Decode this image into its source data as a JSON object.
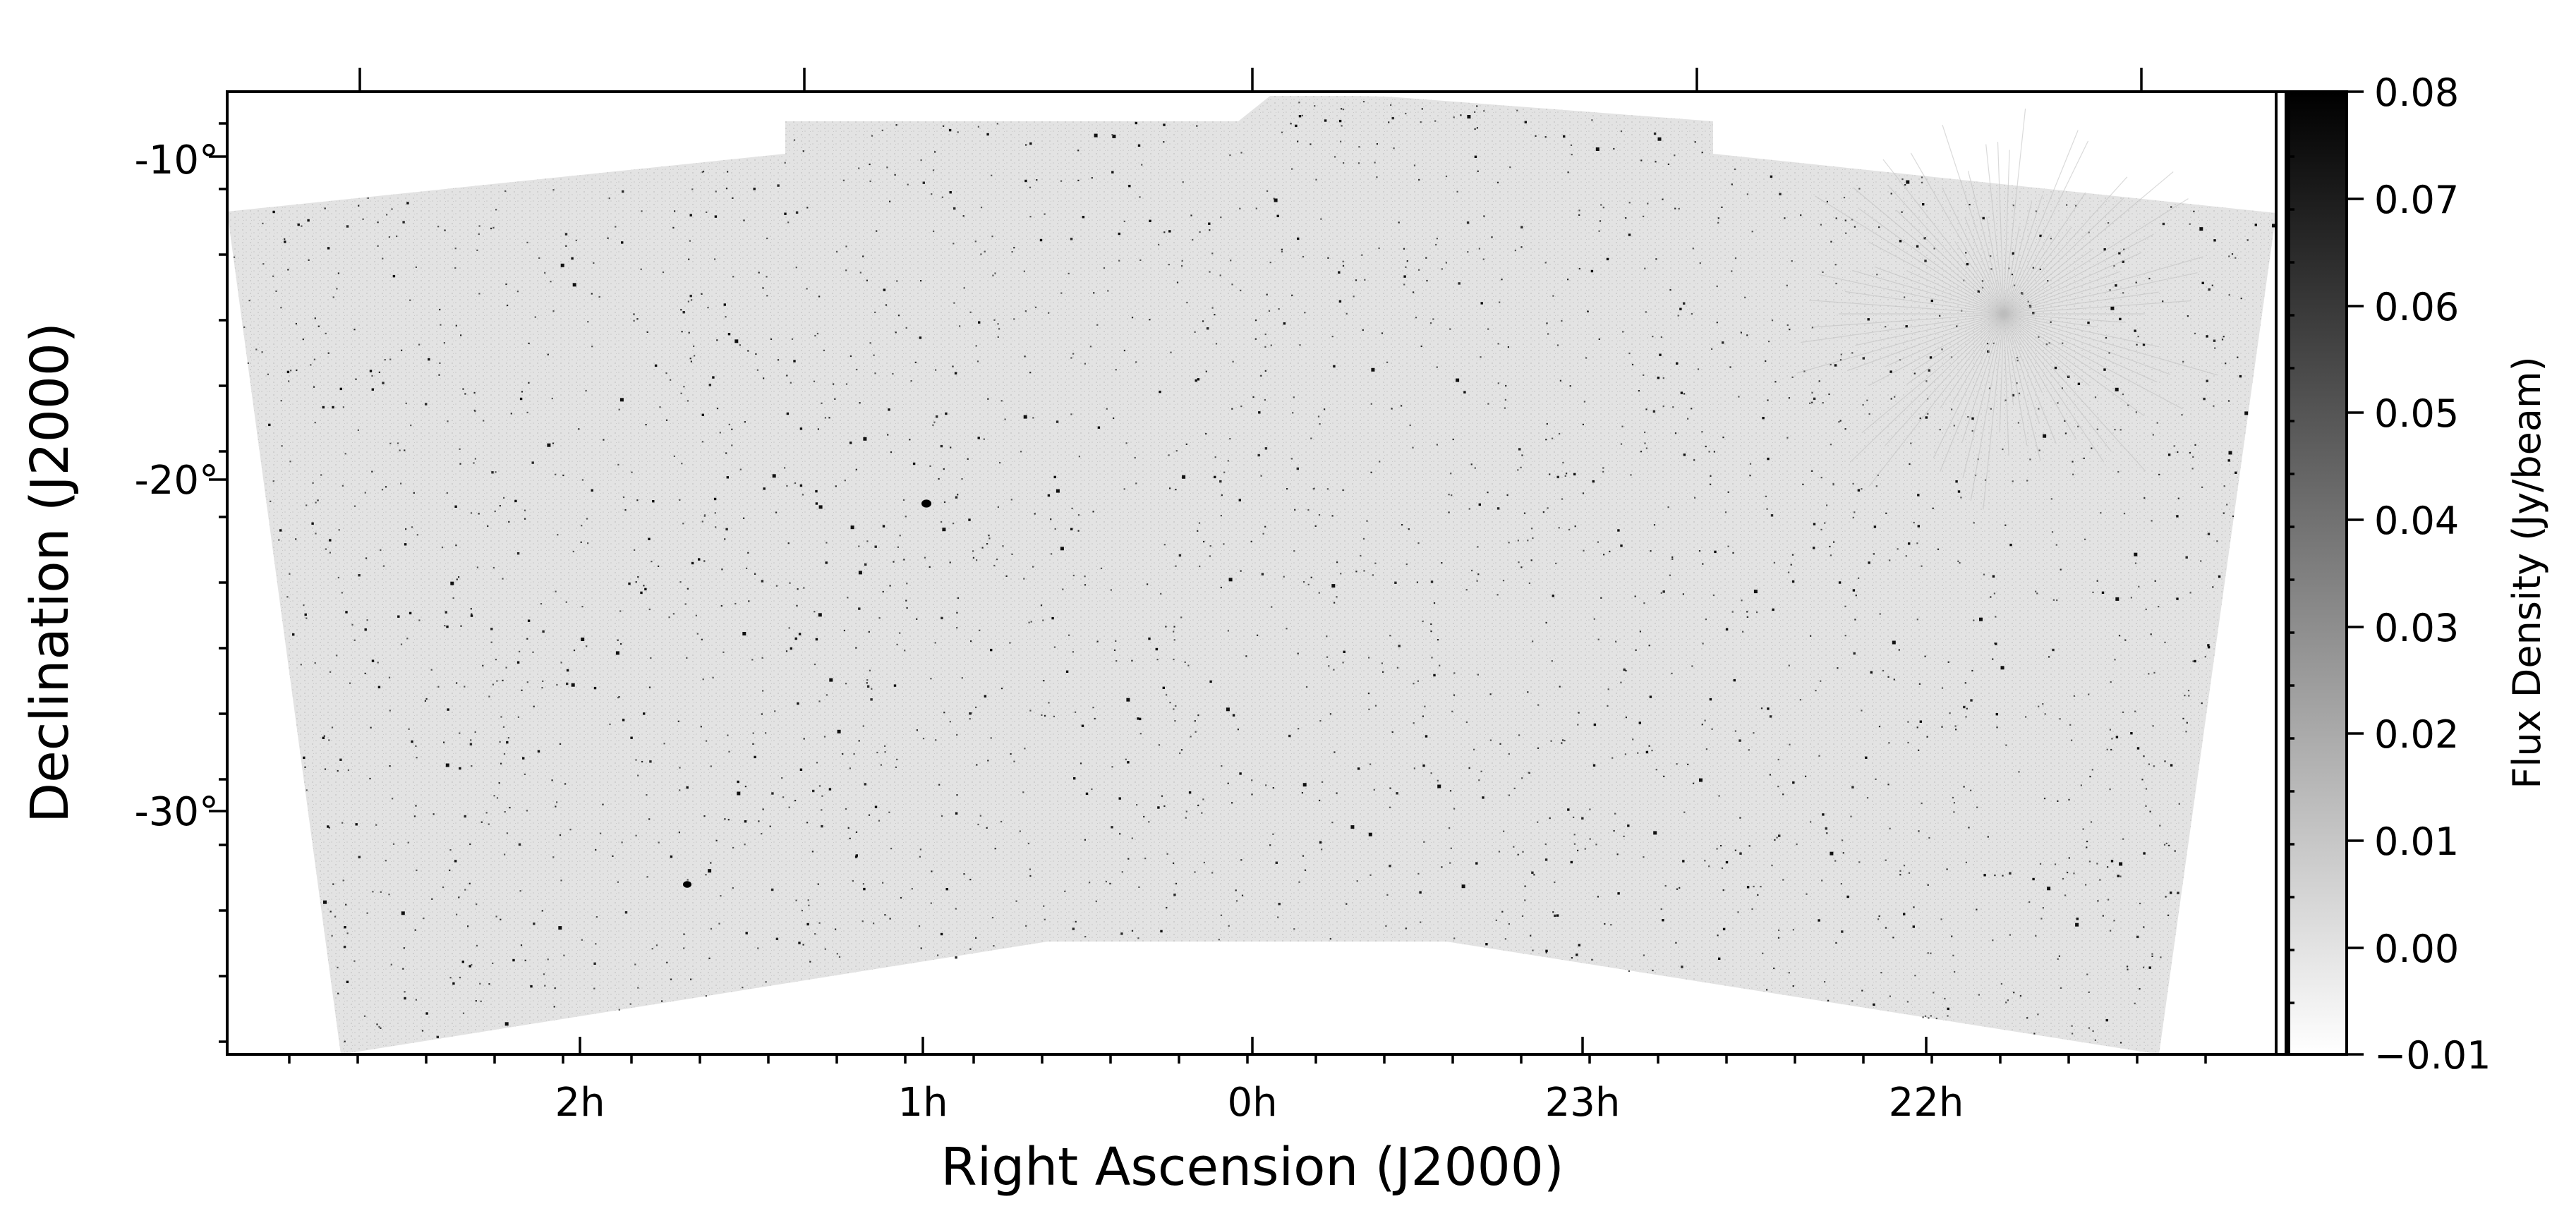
{
  "axes": {
    "xlabel": "Right Ascension (J2000)",
    "ylabel": "Declination (J2000)",
    "x_ticks": [
      "2h",
      "1h",
      "0h",
      "23h",
      "22h"
    ],
    "y_ticks": [
      "-10°",
      "-20°",
      "-30°"
    ]
  },
  "colorbar": {
    "label": "Flux Density (Jy/beam)",
    "ticks": [
      "0.08",
      "0.07",
      "0.06",
      "0.05",
      "0.04",
      "0.03",
      "0.02",
      "0.01",
      "0.00",
      "−0.01"
    ],
    "vmin": -0.01,
    "vmax": 0.08,
    "colormap": "grayscale (white low, black high)"
  },
  "colors": {
    "survey_background": "#e3e3e3",
    "source": "#111111",
    "frame": "#000000"
  }
}
